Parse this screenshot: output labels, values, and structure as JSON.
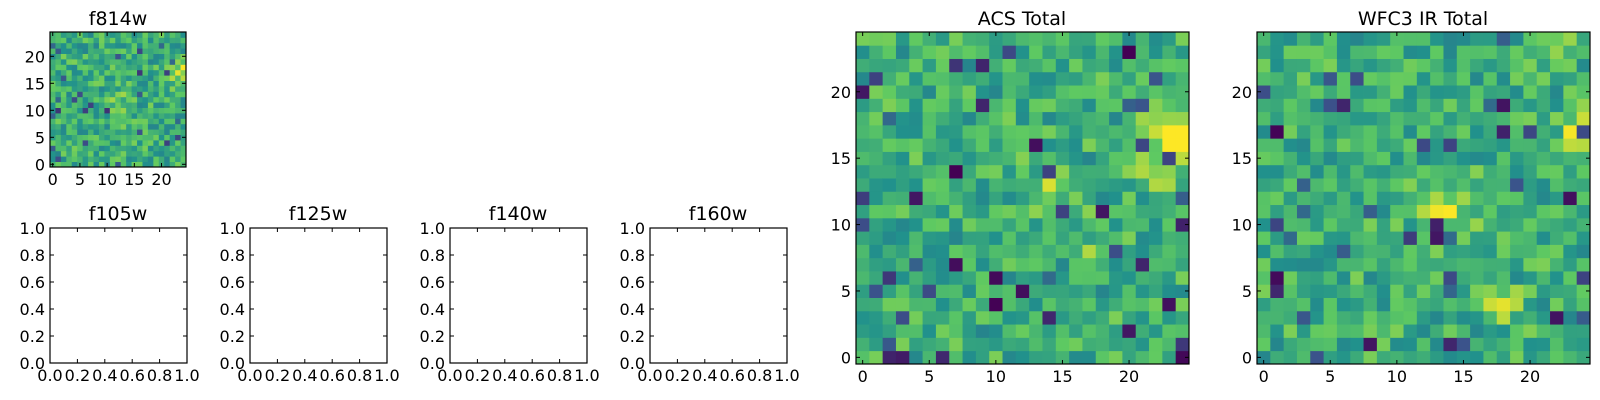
{
  "colors": {
    "colormap": "viridis",
    "stops": [
      "#440154",
      "#3b528b",
      "#21918c",
      "#5ec962",
      "#fde725"
    ],
    "axes_edge": "#000000",
    "background": "#ffffff"
  },
  "chart_data": [
    {
      "id": "f814w",
      "type": "heatmap",
      "title": "f814w",
      "grid_size": 25,
      "xlim": [
        -0.5,
        24.5
      ],
      "ylim": [
        -0.5,
        24.5
      ],
      "xticks": [
        0,
        5,
        10,
        15,
        20
      ],
      "yticks": [
        0,
        5,
        10,
        15,
        20
      ],
      "value_range": [
        0,
        1
      ],
      "seed": 814,
      "hotspots": [
        {
          "x": 24,
          "y": 17,
          "amp": 0.35,
          "radius": 1.5
        },
        {
          "x": 12,
          "y": 11,
          "amp": 0.18,
          "radius": 1.5
        }
      ]
    },
    {
      "id": "f105w",
      "type": "empty",
      "title": "f105w",
      "xlim": [
        0,
        1
      ],
      "ylim": [
        0,
        1
      ],
      "xticklabels": [
        "0.0",
        "0.2",
        "0.4",
        "0.6",
        "0.8",
        "1.0"
      ],
      "yticklabels": [
        "0.0",
        "0.2",
        "0.4",
        "0.6",
        "0.8",
        "1.0"
      ]
    },
    {
      "id": "f125w",
      "type": "empty",
      "title": "f125w",
      "xlim": [
        0,
        1
      ],
      "ylim": [
        0,
        1
      ],
      "xticklabels": [
        "0.0",
        "0.2",
        "0.4",
        "0.6",
        "0.8",
        "1.0"
      ],
      "yticklabels": [
        "0.0",
        "0.2",
        "0.4",
        "0.6",
        "0.8",
        "1.0"
      ]
    },
    {
      "id": "f140w",
      "type": "empty",
      "title": "f140w",
      "xlim": [
        0,
        1
      ],
      "ylim": [
        0,
        1
      ],
      "xticklabels": [
        "0.0",
        "0.2",
        "0.4",
        "0.6",
        "0.8",
        "1.0"
      ],
      "yticklabels": [
        "0.0",
        "0.2",
        "0.4",
        "0.6",
        "0.8",
        "1.0"
      ]
    },
    {
      "id": "f160w",
      "type": "empty",
      "title": "f160w",
      "xlim": [
        0,
        1
      ],
      "ylim": [
        0,
        1
      ],
      "xticklabels": [
        "0.0",
        "0.2",
        "0.4",
        "0.6",
        "0.8",
        "1.0"
      ],
      "yticklabels": [
        "0.0",
        "0.2",
        "0.4",
        "0.6",
        "0.8",
        "1.0"
      ]
    },
    {
      "id": "acs_total",
      "type": "heatmap",
      "title": "ACS Total",
      "grid_size": 25,
      "xlim": [
        -0.5,
        24.5
      ],
      "ylim": [
        -0.5,
        24.5
      ],
      "xticks": [
        0,
        5,
        10,
        15,
        20
      ],
      "yticks": [
        0,
        5,
        10,
        15,
        20
      ],
      "value_range": [
        0,
        1
      ],
      "seed": 1337,
      "hotspots": [
        {
          "x": 24,
          "y": 17,
          "amp": 0.35,
          "radius": 1.5
        },
        {
          "x": 22,
          "y": 15,
          "amp": 0.2,
          "radius": 1.5
        },
        {
          "x": 14,
          "y": 12,
          "amp": 0.18,
          "radius": 1.5
        },
        {
          "x": 17,
          "y": 8,
          "amp": 0.3,
          "radius": 0.6
        }
      ],
      "dark_cells": [
        [
          24,
          0
        ],
        [
          20,
          23
        ],
        [
          9,
          19
        ],
        [
          12,
          5
        ],
        [
          20,
          2
        ],
        [
          6,
          0
        ],
        [
          21,
          7
        ],
        [
          13,
          16
        ],
        [
          23,
          4
        ],
        [
          18,
          11
        ],
        [
          4,
          12
        ],
        [
          7,
          7
        ],
        [
          7,
          14
        ],
        [
          10,
          6
        ],
        [
          2,
          0
        ],
        [
          3,
          0
        ],
        [
          0,
          20
        ],
        [
          24,
          10
        ],
        [
          14,
          3
        ],
        [
          9,
          22
        ],
        [
          10,
          4
        ]
      ]
    },
    {
      "id": "wfc3_ir_total",
      "type": "heatmap",
      "title": "WFC3 IR Total",
      "grid_size": 25,
      "xlim": [
        -0.5,
        24.5
      ],
      "ylim": [
        -0.5,
        24.5
      ],
      "xticks": [
        0,
        5,
        10,
        15,
        20
      ],
      "yticks": [
        0,
        5,
        10,
        15,
        20
      ],
      "value_range": [
        0,
        1
      ],
      "seed": 2024,
      "hotspots": [
        {
          "x": 24,
          "y": 17,
          "amp": 0.3,
          "radius": 1.2
        },
        {
          "x": 22,
          "y": 24,
          "amp": 0.3,
          "radius": 1.2
        },
        {
          "x": 14,
          "y": 11,
          "amp": 0.25,
          "radius": 1.5
        },
        {
          "x": 18,
          "y": 4,
          "amp": 0.2,
          "radius": 1.0
        }
      ],
      "dark_cells": [
        [
          1,
          17
        ],
        [
          18,
          17
        ],
        [
          1,
          6
        ],
        [
          1,
          5
        ],
        [
          13,
          9
        ],
        [
          13,
          10
        ],
        [
          8,
          1
        ],
        [
          18,
          19
        ],
        [
          22,
          3
        ],
        [
          23,
          12
        ],
        [
          14,
          1
        ],
        [
          6,
          19
        ]
      ]
    }
  ]
}
